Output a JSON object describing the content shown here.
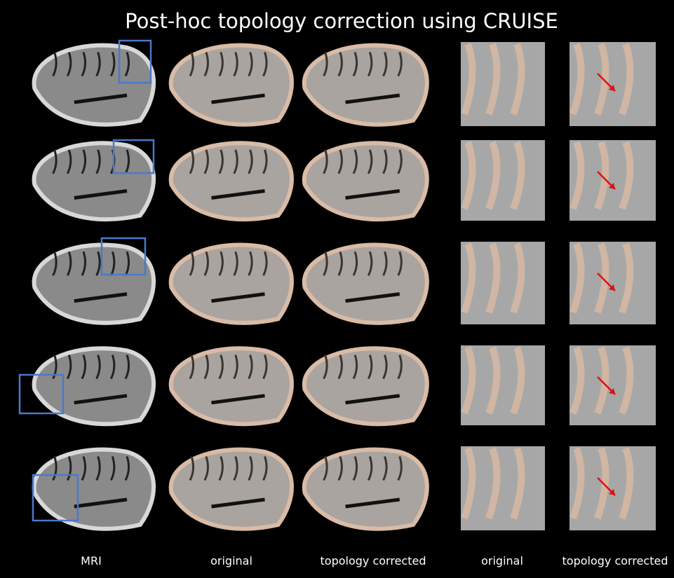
{
  "header": {
    "title": "Post-hoc topology correction using CRUISE"
  },
  "column_labels": [
    "MRI",
    "original",
    "topology corrected",
    "original",
    "topology corrected"
  ]
}
